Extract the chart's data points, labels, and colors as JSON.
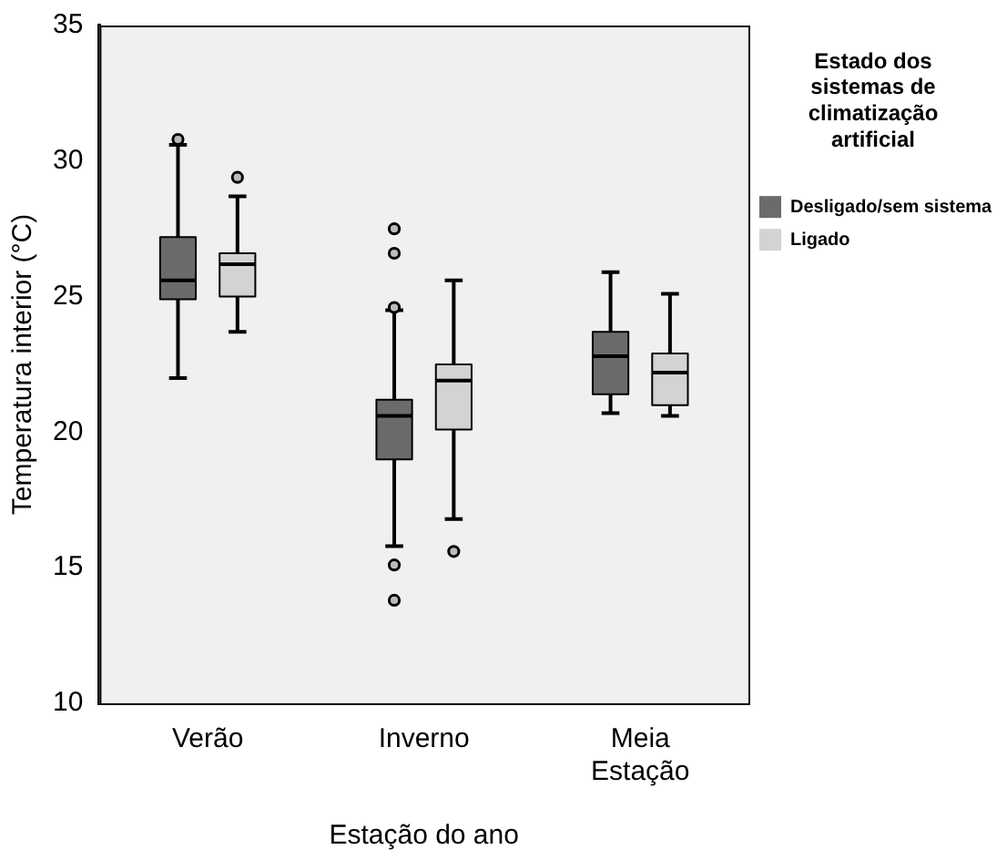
{
  "chart_data": {
    "type": "box",
    "xlabel": "Estação do ano",
    "ylabel": "Temperatura interior (°C)",
    "legend_title": "Estado dos sistemas de climatização artificial",
    "legend": "right",
    "categories": [
      "Verão",
      "Inverno",
      "Meia Estação"
    ],
    "ylim": [
      10,
      35
    ],
    "yticks": [
      10,
      15,
      20,
      25,
      30,
      35
    ],
    "series": [
      {
        "name": "Desligado/sem sistema",
        "color": "#6b6b6b",
        "boxes": [
          {
            "low": 22.0,
            "q1": 24.9,
            "median": 25.6,
            "q3": 27.2,
            "high": 30.6,
            "outliers": [
              30.8
            ]
          },
          {
            "low": 15.8,
            "q1": 19.0,
            "median": 20.6,
            "q3": 21.2,
            "high": 24.5,
            "outliers": [
              27.5,
              26.6,
              24.6,
              15.1,
              13.8
            ]
          },
          {
            "low": 20.7,
            "q1": 21.4,
            "median": 22.8,
            "q3": 23.7,
            "high": 25.9
          }
        ]
      },
      {
        "name": "Ligado",
        "color": "#d3d3d3",
        "boxes": [
          {
            "low": 23.7,
            "q1": 25.0,
            "median": 26.2,
            "q3": 26.6,
            "high": 28.7,
            "outliers": [
              29.4
            ]
          },
          {
            "low": 16.8,
            "q1": 20.1,
            "median": 21.9,
            "q3": 22.5,
            "high": 25.6,
            "outliers": [
              15.6
            ]
          },
          {
            "low": 20.6,
            "q1": 21.0,
            "median": 22.2,
            "q3": 22.9,
            "high": 25.1
          }
        ]
      }
    ]
  }
}
